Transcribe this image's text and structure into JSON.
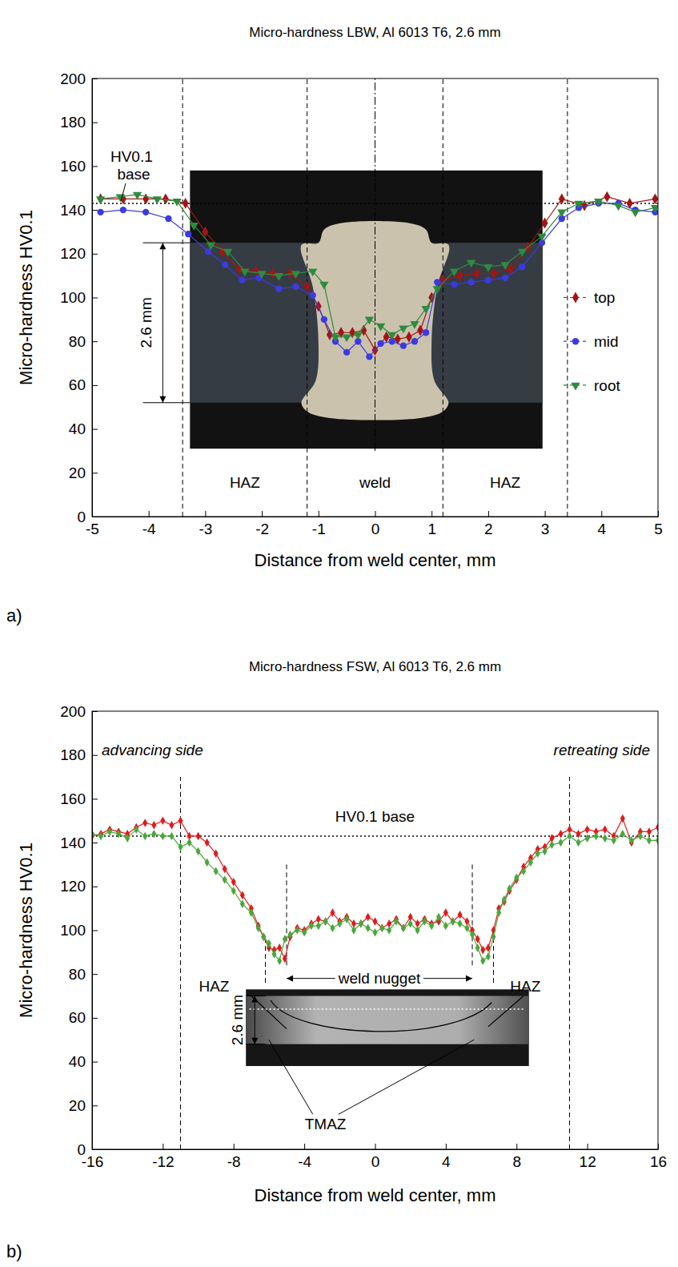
{
  "chart_data": [
    {
      "type": "line",
      "title": "Micro-hardness LBW, Al 6013 T6, 2.6 mm",
      "panel_label": "a)",
      "x_label": "Distance from weld center, mm",
      "y_label": "Micro-hardness HV0.1",
      "xlim": [
        -5,
        5
      ],
      "ylim": [
        0,
        200
      ],
      "xticks": [
        -5,
        -4,
        -3,
        -2,
        -1,
        0,
        1,
        2,
        3,
        4,
        5
      ],
      "yticks": [
        0,
        20,
        40,
        60,
        80,
        100,
        120,
        140,
        160,
        180,
        200
      ],
      "legend": "right",
      "series": [
        {
          "name": "top",
          "color": "#a31515",
          "marker": "diamond",
          "line_style": "solid",
          "x": [
            -4.85,
            -4.45,
            -4.05,
            -3.7,
            -3.35,
            -3.0,
            -2.7,
            -2.4,
            -2.1,
            -1.8,
            -1.5,
            -1.2,
            -1.0,
            -0.8,
            -0.6,
            -0.4,
            -0.2,
            0.0,
            0.2,
            0.4,
            0.6,
            0.8,
            1.0,
            1.2,
            1.5,
            1.8,
            2.1,
            2.4,
            2.7,
            3.0,
            3.3,
            3.7,
            4.1,
            4.5,
            4.95
          ],
          "values": [
            145,
            145,
            145,
            145,
            143,
            130,
            121,
            113,
            112,
            111,
            111,
            105,
            96,
            83,
            84,
            84,
            85,
            76,
            82,
            81,
            82,
            85,
            100,
            108,
            110,
            111,
            111,
            113,
            123,
            134,
            145,
            142,
            146,
            143,
            145
          ]
        },
        {
          "name": "mid",
          "color": "#3b3be0",
          "marker": "circle",
          "line_style": "solid",
          "x": [
            -4.85,
            -4.45,
            -4.05,
            -3.65,
            -3.3,
            -2.95,
            -2.65,
            -2.35,
            -2.05,
            -1.7,
            -1.4,
            -1.1,
            -0.9,
            -0.7,
            -0.5,
            -0.3,
            -0.1,
            0.1,
            0.3,
            0.5,
            0.7,
            0.9,
            1.1,
            1.4,
            1.7,
            2.0,
            2.3,
            2.6,
            2.95,
            3.3,
            3.6,
            3.95,
            4.3,
            4.6,
            4.95
          ],
          "values": [
            139,
            140,
            139,
            136,
            129,
            121,
            115,
            108,
            109,
            104,
            105,
            101,
            90,
            80,
            75,
            80,
            73,
            79,
            80,
            78,
            80,
            84,
            107,
            106,
            107,
            108,
            109,
            114,
            125,
            136,
            141,
            143,
            143,
            140,
            139
          ]
        },
        {
          "name": "root",
          "color": "#2e8b3e",
          "marker": "triangle-down",
          "line_style": "solid",
          "x": [
            -4.85,
            -4.5,
            -4.2,
            -3.85,
            -3.5,
            -3.2,
            -2.9,
            -2.6,
            -2.3,
            -2.0,
            -1.7,
            -1.4,
            -1.1,
            -0.9,
            -0.7,
            -0.5,
            -0.3,
            -0.1,
            0.1,
            0.3,
            0.5,
            0.7,
            0.9,
            1.1,
            1.4,
            1.7,
            2.0,
            2.3,
            2.6,
            2.95,
            3.3,
            3.6,
            3.95,
            4.3,
            4.6,
            4.95
          ],
          "values": [
            145,
            146,
            147,
            145,
            144,
            133,
            124,
            121,
            112,
            111,
            110,
            111,
            112,
            106,
            82,
            82,
            83,
            90,
            87,
            83,
            86,
            88,
            95,
            104,
            112,
            116,
            114,
            115,
            121,
            128,
            139,
            143,
            144,
            142,
            139,
            141
          ]
        }
      ],
      "reference_line": {
        "value": 143,
        "label": "HV0.1 base"
      },
      "boundaries": [
        {
          "x": -3.4,
          "y_range": [
            0,
            200
          ]
        },
        {
          "x": -1.2,
          "y_range": [
            0,
            200
          ]
        },
        {
          "x": 1.2,
          "y_range": [
            0,
            200
          ]
        },
        {
          "x": 3.4,
          "y_range": [
            0,
            200
          ]
        }
      ],
      "center_line": {
        "x": 0,
        "y_range": [
          30,
          200
        ]
      },
      "regions": [
        {
          "label": "HAZ",
          "x": -2.3,
          "y": 13
        },
        {
          "label": "weld",
          "x": 0,
          "y": 13
        },
        {
          "label": "HAZ",
          "x": 2.3,
          "y": 13
        }
      ],
      "thickness_label": "2.6 mm"
    },
    {
      "type": "line",
      "title": "Micro-hardness FSW, Al 6013 T6, 2.6 mm",
      "panel_label": "b)",
      "x_label": "Distance from weld center, mm",
      "y_label": "Micro-hardness HV0.1",
      "xlim": [
        -16,
        16
      ],
      "ylim": [
        0,
        200
      ],
      "xticks": [
        -16,
        -12,
        -8,
        -4,
        0,
        4,
        8,
        12,
        16
      ],
      "yticks": [
        0,
        20,
        40,
        60,
        80,
        100,
        120,
        140,
        160,
        180,
        200
      ],
      "x": [
        -16,
        -15.5,
        -15,
        -14.5,
        -14,
        -13.5,
        -13,
        -12.5,
        -12,
        -11.5,
        -11,
        -10.5,
        -10,
        -9.5,
        -9,
        -8.5,
        -8,
        -7.5,
        -7,
        -6.6,
        -6.3,
        -6,
        -5.7,
        -5.4,
        -5.1,
        -4.8,
        -4.4,
        -4,
        -3.6,
        -3.2,
        -2.8,
        -2.4,
        -2,
        -1.6,
        -1.2,
        -0.8,
        -0.4,
        0,
        0.4,
        0.8,
        1.2,
        1.6,
        2,
        2.4,
        2.8,
        3.2,
        3.6,
        4,
        4.4,
        4.8,
        5.2,
        5.5,
        5.8,
        6.1,
        6.4,
        6.7,
        7,
        7.3,
        7.6,
        8,
        8.4,
        8.8,
        9.2,
        9.6,
        10,
        10.5,
        11,
        11.5,
        12,
        12.5,
        13,
        13.5,
        14,
        14.5,
        15,
        15.5,
        16
      ],
      "series": [
        {
          "color": "#e01b1b",
          "marker": "diamond",
          "line_style": "solid",
          "values": [
            143,
            144,
            146,
            145,
            144,
            147,
            149,
            148,
            150,
            148,
            150,
            143,
            143,
            140,
            135,
            128,
            122,
            116,
            110,
            102,
            97,
            92,
            91,
            92,
            87,
            97,
            101,
            100,
            103,
            105,
            104,
            108,
            104,
            106,
            103,
            103,
            106,
            104,
            101,
            103,
            105,
            101,
            106,
            103,
            105,
            103,
            104,
            108,
            104,
            107,
            104,
            100,
            96,
            91,
            92,
            100,
            110,
            113,
            118,
            123,
            129,
            133,
            137,
            138,
            142,
            144,
            146,
            144,
            146,
            145,
            146,
            143,
            151,
            140,
            145,
            145,
            147
          ]
        },
        {
          "color": "#49a83c",
          "marker": "diamond",
          "line_style": "solid",
          "values": [
            144,
            143,
            145,
            144,
            142,
            146,
            143,
            144,
            143,
            143,
            138,
            140,
            136,
            131,
            127,
            123,
            118,
            112,
            108,
            101,
            97,
            94,
            89,
            86,
            96,
            98,
            100,
            99,
            102,
            102,
            104,
            101,
            103,
            105,
            100,
            103,
            101,
            99,
            101,
            100,
            104,
            101,
            103,
            100,
            104,
            102,
            106,
            102,
            104,
            103,
            101,
            98,
            92,
            86,
            88,
            97,
            108,
            114,
            119,
            124,
            127,
            131,
            135,
            136,
            139,
            140,
            143,
            140,
            142,
            143,
            142,
            141,
            144,
            141,
            143,
            141,
            141
          ]
        }
      ],
      "reference_line": {
        "value": 143,
        "label": "HV0.1 base"
      },
      "boundaries": [
        {
          "x": -11,
          "y_range": [
            0,
            170
          ]
        },
        {
          "x": -6.2,
          "y_range": [
            76,
            96
          ]
        },
        {
          "x": -5,
          "y_range": [
            84,
            130
          ]
        },
        {
          "x": 5.5,
          "y_range": [
            84,
            130
          ]
        },
        {
          "x": 6.7,
          "y_range": [
            76,
            96
          ]
        },
        {
          "x": 11,
          "y_range": [
            0,
            170
          ]
        }
      ],
      "side_labels": [
        "advancing side",
        "retreating side"
      ],
      "regions": [
        {
          "label": "HAZ",
          "x": -9.1,
          "y": 72
        },
        {
          "label": "HAZ",
          "x": 8.5,
          "y": 72
        }
      ],
      "nugget": {
        "label": "weld nugget",
        "from": -5,
        "to": 5.5,
        "y": 78
      },
      "tmaz": {
        "label": "TMAZ",
        "x": -2.8,
        "y": 9
      },
      "thickness_label": "2.6 mm"
    }
  ]
}
